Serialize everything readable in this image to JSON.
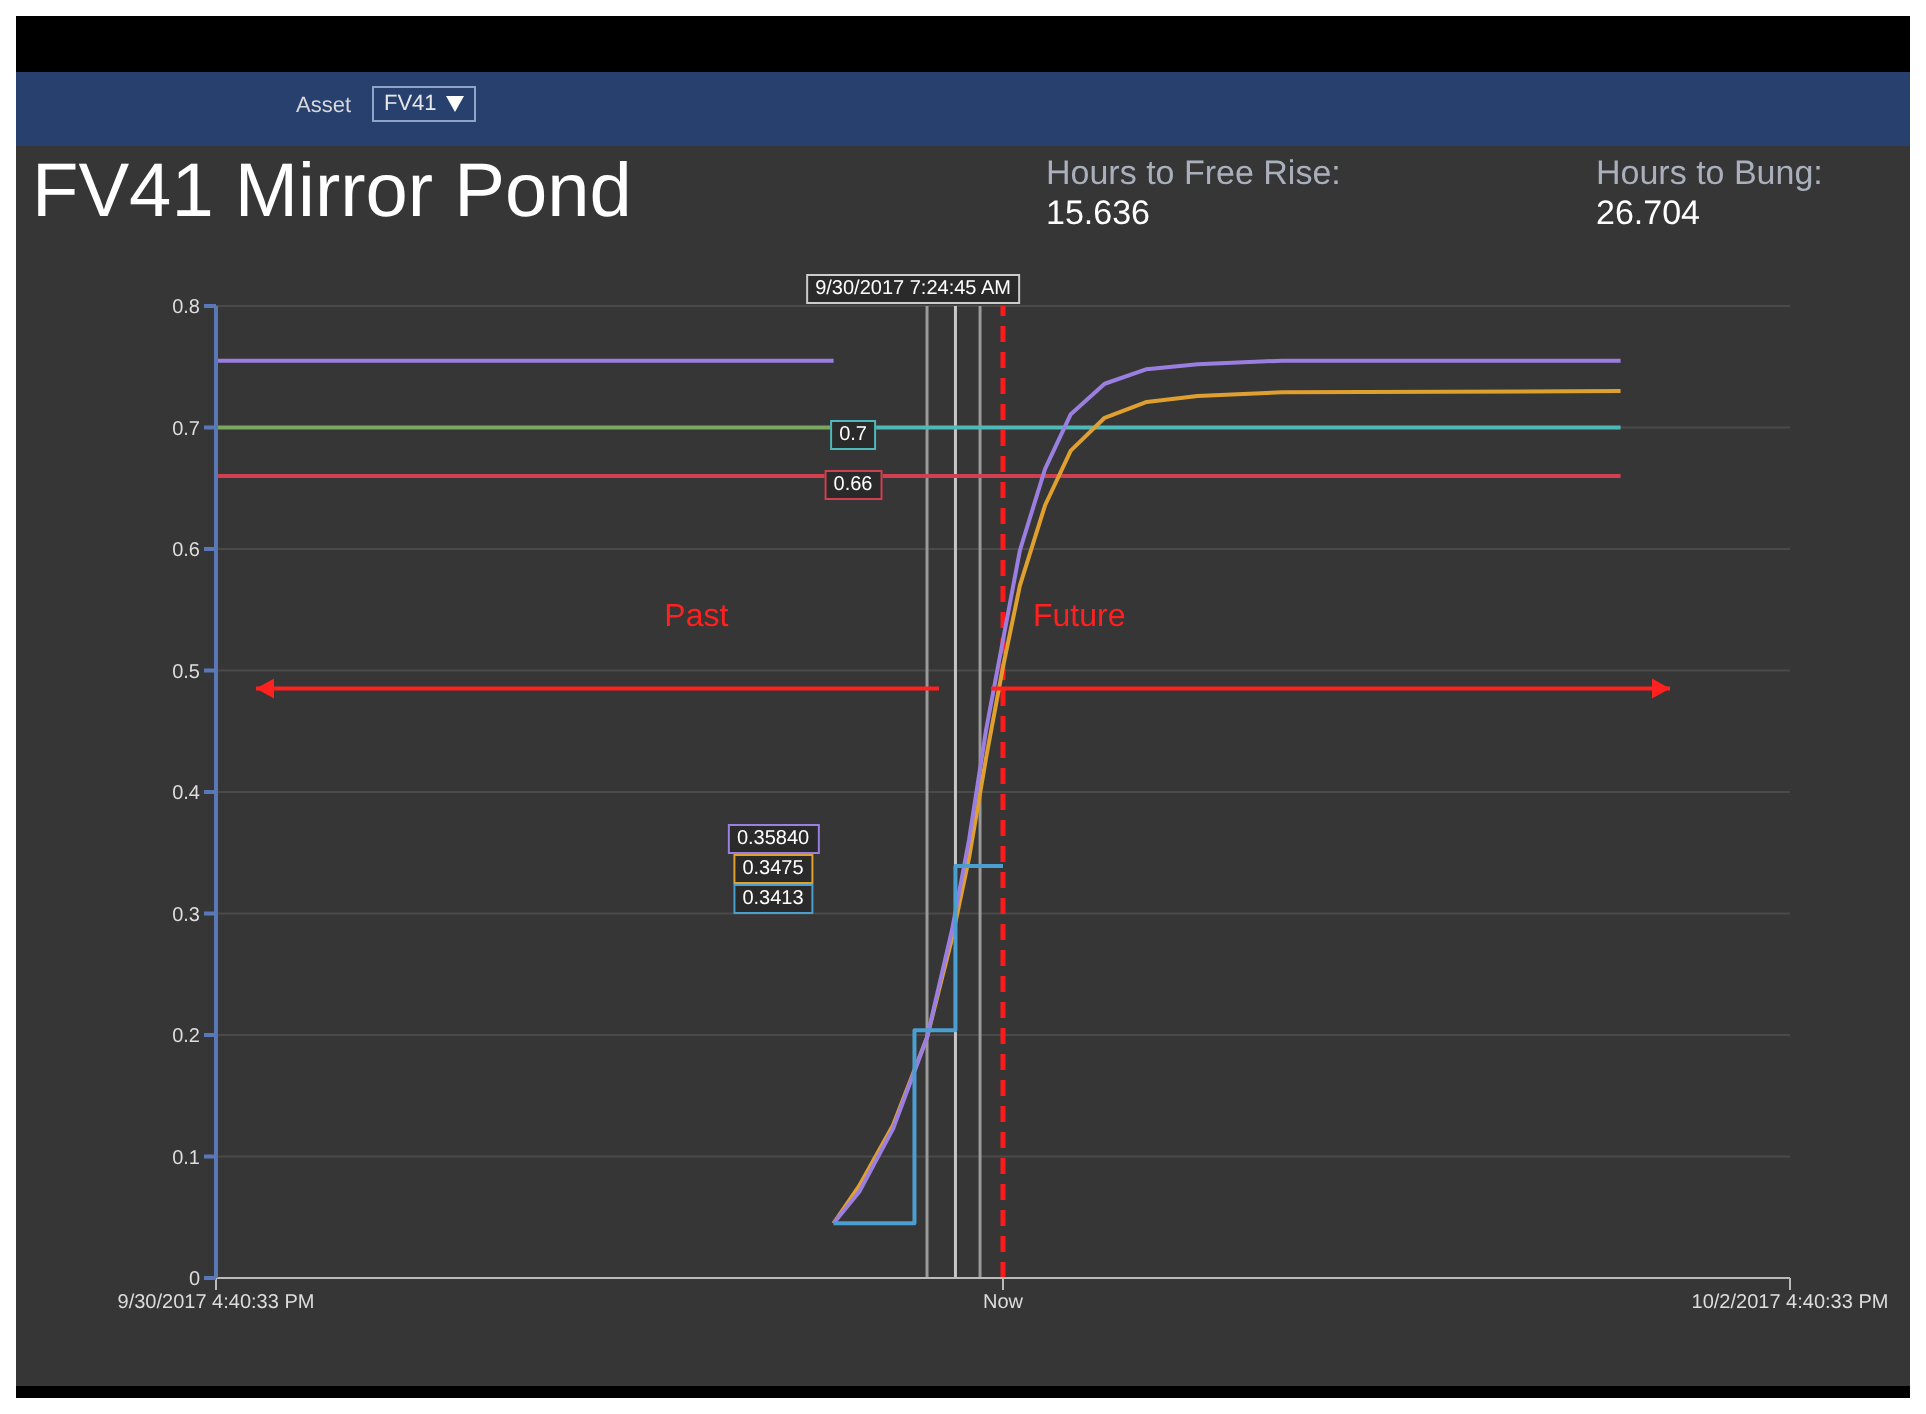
{
  "chart_data": {
    "type": "line",
    "title": "FV41 Mirror Pond",
    "annotations": [
      "Asset",
      "FV41",
      "Hours to Free Rise:",
      "15.636",
      "Hours to Bung:",
      "26.704",
      "Past",
      "Future",
      "0.7",
      "0.66",
      "0.35840",
      "0.3475",
      "0.3413",
      "9/30/2017 7:24:45 AM"
    ],
    "xlim": [
      "2017-09-30T16:40",
      "2017-10-02T16:40"
    ],
    "xticks": [
      {
        "value": "2017-09-30T16:40",
        "label": "9/30/2017 4:40:33 PM"
      },
      {
        "value": "2017-10-01T16:40",
        "label": "Now"
      },
      {
        "value": "2017-10-02T16:40",
        "label": "10/2/2017 4:40:33 PM"
      }
    ],
    "ylim": [
      0,
      0.8
    ],
    "yticks": [
      0,
      0.1,
      0.2,
      0.3,
      0.4,
      0.5,
      0.6,
      0.7,
      0.8
    ],
    "grid": "y",
    "line_style": "solid",
    "marker": "none",
    "series": [
      {
        "color": "#9b7fe0",
        "x": [
          "2017-09-30T16:40",
          "2017-10-01T11:30"
        ],
        "values": [
          0.755,
          0.755
        ]
      },
      {
        "color": "#7aa860",
        "x": [
          "2017-09-30T16:40",
          "2017-10-01T11:30"
        ],
        "values": [
          0.7,
          0.7
        ]
      },
      {
        "color": "#d04050",
        "x": [
          "2017-09-30T16:40",
          "2017-10-02T11:30"
        ],
        "values": [
          0.66,
          0.66
        ]
      },
      {
        "color": "#4fb8b8",
        "x": [
          "2017-10-01T11:30",
          "2017-10-02T11:30"
        ],
        "values": [
          0.7,
          0.7
        ]
      },
      {
        "color": "#e0a030",
        "x": [
          "2017-10-01T11:30",
          "2017-10-01T12:17",
          "2017-10-01T13:19",
          "2017-10-01T14:21",
          "2017-10-01T15:07",
          "2017-10-01T15:38",
          "2017-10-01T16:09",
          "2017-10-01T16:40",
          "2017-10-01T17:11",
          "2017-10-01T17:57",
          "2017-10-01T18:44",
          "2017-10-01T19:46",
          "2017-10-01T21:03",
          "2017-10-01T22:36",
          "2017-10-02T01:11",
          "2017-10-02T11:30"
        ],
        "values": [
          0.045,
          0.076,
          0.126,
          0.198,
          0.28,
          0.346,
          0.428,
          0.503,
          0.57,
          0.636,
          0.681,
          0.708,
          0.721,
          0.726,
          0.729,
          0.73
        ]
      },
      {
        "color": "#9b7fe0",
        "x": [
          "2017-10-01T11:30",
          "2017-10-01T12:17",
          "2017-10-01T13:19",
          "2017-10-01T14:21",
          "2017-10-01T15:07",
          "2017-10-01T15:38",
          "2017-10-01T16:09",
          "2017-10-01T16:40",
          "2017-10-01T17:11",
          "2017-10-01T17:57",
          "2017-10-01T18:44",
          "2017-10-01T19:46",
          "2017-10-01T21:03",
          "2017-10-01T22:36",
          "2017-10-02T01:11",
          "2017-10-02T11:30"
        ],
        "values": [
          0.045,
          0.071,
          0.123,
          0.198,
          0.287,
          0.361,
          0.451,
          0.525,
          0.599,
          0.666,
          0.711,
          0.736,
          0.748,
          0.752,
          0.755,
          0.755
        ]
      },
      {
        "type": "step",
        "color": "#4a9fd0",
        "x": [
          "2017-10-01T11:30",
          "2017-10-01T13:58",
          "2017-10-01T15:13",
          "2017-10-01T16:40"
        ],
        "values": [
          0.045,
          0.204,
          0.339,
          0.339
        ]
      }
    ],
    "ref_lines": [
      {
        "axis": "x",
        "value": "2017-10-01T14:21",
        "color": "#9a9a9a",
        "line_style": "solid"
      },
      {
        "axis": "x",
        "value": "2017-10-01T15:13",
        "color": "#c8c8c8",
        "line_style": "solid"
      },
      {
        "axis": "x",
        "value": "2017-10-01T15:58",
        "color": "#9a9a9a",
        "line_style": "solid"
      },
      {
        "axis": "x",
        "value": "2017-10-01T16:40",
        "color": "#ff1a1a",
        "line_style": "dashed"
      }
    ]
  }
}
